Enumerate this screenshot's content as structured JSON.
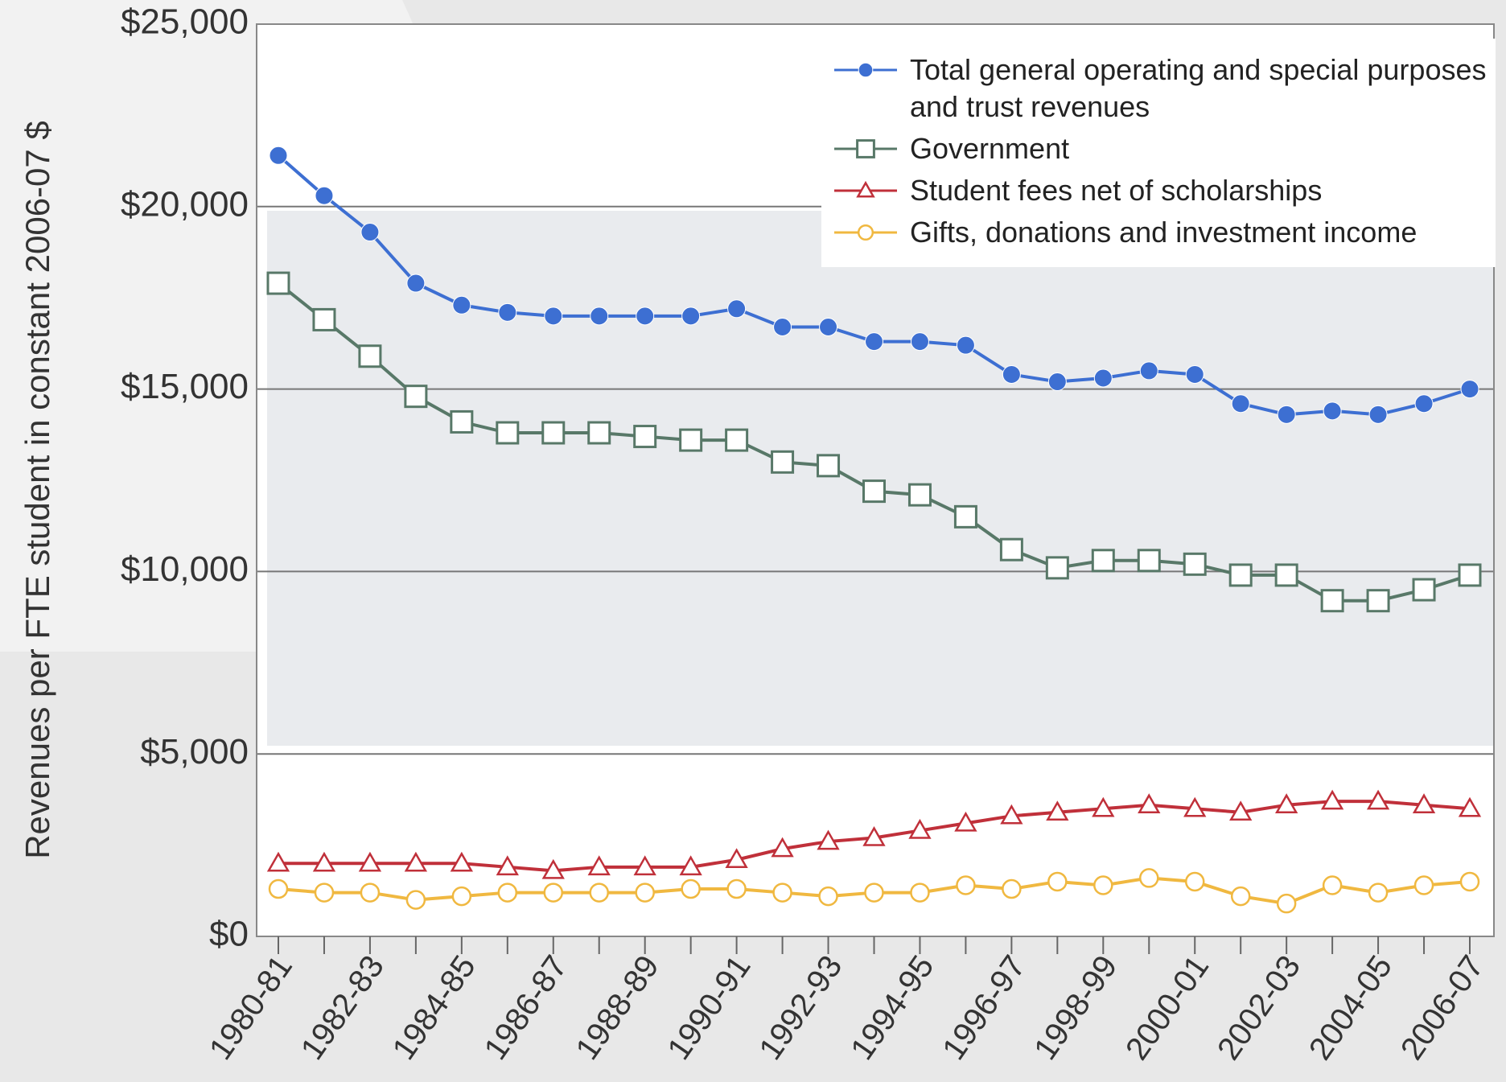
{
  "chart_data": {
    "type": "line",
    "y_label": "Revenues per FTE student in constant 2006-07 $",
    "categories": [
      "1980-81",
      null,
      "1982-83",
      null,
      "1984-85",
      null,
      "1986-87",
      null,
      "1988-89",
      null,
      "1990-91",
      null,
      "1992-93",
      null,
      "1994-95",
      null,
      "1996-97",
      null,
      "1998-99",
      null,
      "2000-01",
      null,
      "2002-03",
      null,
      "2004-05",
      null,
      "2006-07"
    ],
    "series": [
      {
        "name": "Total general operating and special purposes and trust revenues",
        "color": "#3d6fd2",
        "marker": "filled-circle",
        "values": [
          21400,
          20300,
          19300,
          17900,
          17300,
          17100,
          17000,
          17000,
          17000,
          17000,
          17200,
          16700,
          16700,
          16300,
          16300,
          16200,
          15400,
          15200,
          15300,
          15500,
          15400,
          14600,
          14300,
          14400,
          14300,
          14600,
          15000
        ]
      },
      {
        "name": "Government",
        "color": "#587868",
        "marker": "square",
        "values": [
          17900,
          16900,
          15900,
          14800,
          14100,
          13800,
          13800,
          13800,
          13700,
          13600,
          13600,
          13000,
          12900,
          12200,
          12100,
          11500,
          10600,
          10100,
          10300,
          10300,
          10200,
          9900,
          9900,
          9200,
          9200,
          9500,
          9900
        ]
      },
      {
        "name": "Student fees net of scholarships",
        "color": "#c0303a",
        "marker": "triangle",
        "values": [
          2000,
          2000,
          2000,
          2000,
          2000,
          1900,
          1800,
          1900,
          1900,
          1900,
          2100,
          2400,
          2600,
          2700,
          2900,
          3100,
          3300,
          3400,
          3500,
          3600,
          3500,
          3400,
          3600,
          3700,
          3700,
          3600,
          3500
        ]
      },
      {
        "name": "Gifts, donations and investment income",
        "color": "#f0b840",
        "marker": "circle",
        "values": [
          1300,
          1200,
          1200,
          1000,
          1100,
          1200,
          1200,
          1200,
          1200,
          1300,
          1300,
          1200,
          1100,
          1200,
          1200,
          1400,
          1300,
          1500,
          1400,
          1600,
          1500,
          1100,
          900,
          1400,
          1200,
          1400,
          1500
        ]
      }
    ],
    "ylim": [
      0,
      25000
    ],
    "yticks": [
      {
        "value": 0,
        "label": "$0"
      },
      {
        "value": 5000,
        "label": "$5,000"
      },
      {
        "value": 10000,
        "label": "$10,000"
      },
      {
        "value": 15000,
        "label": "$15,000"
      },
      {
        "value": 20000,
        "label": "$20,000"
      },
      {
        "value": 25000,
        "label": "$25,000"
      }
    ],
    "grid": true,
    "legend": "top-right"
  }
}
